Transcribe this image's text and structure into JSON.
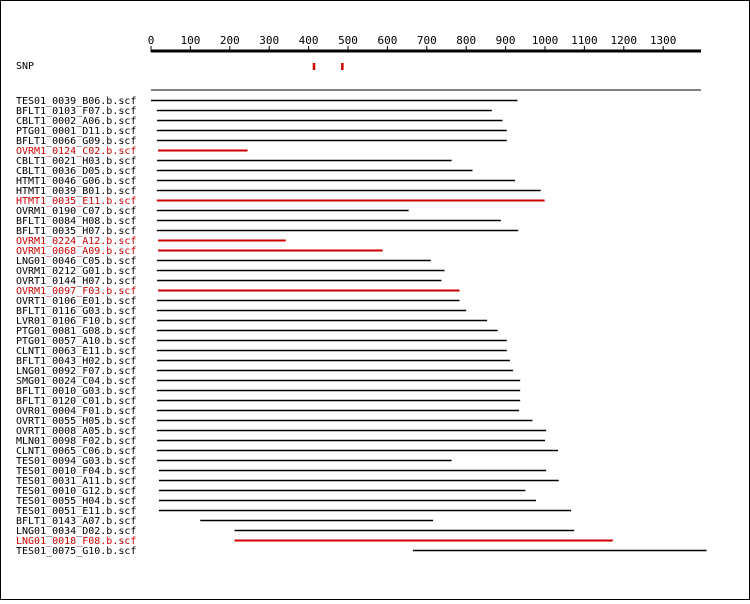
{
  "colors": {
    "normal": "#000000",
    "highlight": "#cc0000",
    "background": "#ffffff"
  },
  "chart_data": {
    "type": "alignment-track",
    "axis": {
      "min": 0,
      "max": 1400,
      "tick_labels": [
        0,
        100,
        200,
        300,
        400,
        500,
        600,
        700,
        800,
        900,
        1000,
        1100,
        1200,
        1300
      ]
    },
    "snp": {
      "label": "SNP",
      "positions": [
        413,
        485
      ]
    },
    "reads": [
      {
        "name": "TES01_0039_B06.b.scf",
        "start": 0,
        "end": 930,
        "highlight": false
      },
      {
        "name": "BFLT1_0103_F07.b.scf",
        "start": 15,
        "end": 865,
        "highlight": false
      },
      {
        "name": "CBLT1_0002_A06.b.scf",
        "start": 15,
        "end": 892,
        "highlight": false
      },
      {
        "name": "PTG01_0001_D11.b.scf",
        "start": 15,
        "end": 903,
        "highlight": false
      },
      {
        "name": "BFLT1_0066_G09.b.scf",
        "start": 15,
        "end": 903,
        "highlight": false
      },
      {
        "name": "OVRM1_0124_C02.b.scf",
        "start": 18,
        "end": 245,
        "highlight": true
      },
      {
        "name": "CBLT1_0021_H03.b.scf",
        "start": 15,
        "end": 763,
        "highlight": false
      },
      {
        "name": "CBLT1_0036_D05.b.scf",
        "start": 15,
        "end": 816,
        "highlight": false
      },
      {
        "name": "HTMT1_0046_G06.b.scf",
        "start": 15,
        "end": 924,
        "highlight": false
      },
      {
        "name": "HTMT1_0039_B01.b.scf",
        "start": 15,
        "end": 989,
        "highlight": false
      },
      {
        "name": "HTMT1_0035_E11.b.scf",
        "start": 15,
        "end": 999,
        "highlight": true
      },
      {
        "name": "OVRM1_0190_C07.b.scf",
        "start": 15,
        "end": 654,
        "highlight": false
      },
      {
        "name": "BFLT1_0084_H08.b.scf",
        "start": 15,
        "end": 888,
        "highlight": false
      },
      {
        "name": "BFLT1_0035_H07.b.scf",
        "start": 15,
        "end": 932,
        "highlight": false
      },
      {
        "name": "OVRM1_0224_A12.b.scf",
        "start": 18,
        "end": 342,
        "highlight": true
      },
      {
        "name": "OVRM1_0068_A09.b.scf",
        "start": 18,
        "end": 588,
        "highlight": true
      },
      {
        "name": "LNG01_0046_C05.b.scf",
        "start": 15,
        "end": 710,
        "highlight": false
      },
      {
        "name": "OVRM1_0212_G01.b.scf",
        "start": 15,
        "end": 745,
        "highlight": false
      },
      {
        "name": "OVRT1_0144_H07.b.scf",
        "start": 15,
        "end": 737,
        "highlight": false
      },
      {
        "name": "OVRM1_0097_F03.b.scf",
        "start": 18,
        "end": 783,
        "highlight": true
      },
      {
        "name": "OVRT1_0106_E01.b.scf",
        "start": 15,
        "end": 783,
        "highlight": false
      },
      {
        "name": "BFLT1_0116_G03.b.scf",
        "start": 15,
        "end": 800,
        "highlight": false
      },
      {
        "name": "LVR01_0106_F10.b.scf",
        "start": 15,
        "end": 853,
        "highlight": false
      },
      {
        "name": "PTG01_0081_G08.b.scf",
        "start": 15,
        "end": 880,
        "highlight": false
      },
      {
        "name": "PTG01_0057_A10.b.scf",
        "start": 15,
        "end": 903,
        "highlight": false
      },
      {
        "name": "CLNT1_0063_E11.b.scf",
        "start": 15,
        "end": 903,
        "highlight": false
      },
      {
        "name": "BFLT1_0043_H02.b.scf",
        "start": 15,
        "end": 911,
        "highlight": false
      },
      {
        "name": "LNG01_0092_F07.b.scf",
        "start": 15,
        "end": 919,
        "highlight": false
      },
      {
        "name": "SMG01_0024_C04.b.scf",
        "start": 15,
        "end": 937,
        "highlight": false
      },
      {
        "name": "BFLT1_0010_G03.b.scf",
        "start": 15,
        "end": 937,
        "highlight": false
      },
      {
        "name": "BFLT1_0120_C01.b.scf",
        "start": 15,
        "end": 937,
        "highlight": false
      },
      {
        "name": "OVR01_0004_F01.b.scf",
        "start": 15,
        "end": 934,
        "highlight": false
      },
      {
        "name": "OVRT1_0055_H05.b.scf",
        "start": 15,
        "end": 968,
        "highlight": false
      },
      {
        "name": "OVRT1_0008_A05.b.scf",
        "start": 15,
        "end": 1003,
        "highlight": false
      },
      {
        "name": "MLN01_0098_F02.b.scf",
        "start": 15,
        "end": 1000,
        "highlight": false
      },
      {
        "name": "CLNT1_0065_C06.b.scf",
        "start": 15,
        "end": 1033,
        "highlight": false
      },
      {
        "name": "TES01_0094_G03.b.scf",
        "start": 15,
        "end": 763,
        "highlight": false
      },
      {
        "name": "TES01_0010_F04.b.scf",
        "start": 20,
        "end": 1003,
        "highlight": false
      },
      {
        "name": "TES01_0031_A11.b.scf",
        "start": 20,
        "end": 1035,
        "highlight": false
      },
      {
        "name": "TES01_0010_G12.b.scf",
        "start": 20,
        "end": 950,
        "highlight": false
      },
      {
        "name": "TES01_0055_H04.b.scf",
        "start": 20,
        "end": 977,
        "highlight": false
      },
      {
        "name": "TES01_0051_E11.b.scf",
        "start": 20,
        "end": 1066,
        "highlight": false
      },
      {
        "name": "BFLT1_0143_A07.b.scf",
        "start": 125,
        "end": 716,
        "highlight": false
      },
      {
        "name": "LNG01_0034_D02.b.scf",
        "start": 212,
        "end": 1074,
        "highlight": false
      },
      {
        "name": "LNG01_0018_F08.b.scf",
        "start": 212,
        "end": 1172,
        "highlight": true
      },
      {
        "name": "TES01_0075_G10.b.scf",
        "start": 665,
        "end": 1410,
        "highlight": false
      }
    ]
  }
}
